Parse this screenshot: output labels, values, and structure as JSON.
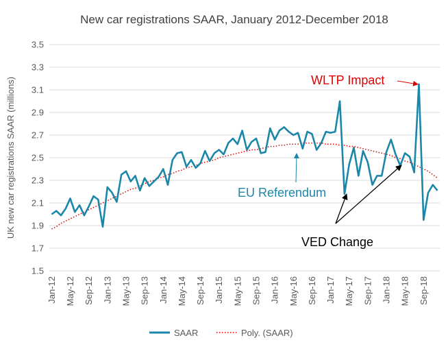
{
  "chart_data": {
    "type": "line",
    "title": "New car registrations SAAR, January 2012-December 2018",
    "ylabel": "UK new car registrations SAAR (millions)",
    "xlabel": "",
    "ylim": [
      1.5,
      3.5
    ],
    "yticks": [
      "1.5",
      "1.7",
      "1.9",
      "2.1",
      "2.3",
      "2.5",
      "2.7",
      "2.9",
      "3.1",
      "3.3",
      "3.5"
    ],
    "xtick_labels": [
      "Jan-12",
      "May-12",
      "Sep-12",
      "Jan-13",
      "May-13",
      "Sep-13",
      "Jan-14",
      "May-14",
      "Sep-14",
      "Jan-15",
      "May-15",
      "Sep-15",
      "Jan-16",
      "May-16",
      "Sep-16",
      "Jan-17",
      "May-17",
      "Sep-17",
      "Jan-18",
      "May-18",
      "Sep-18"
    ],
    "x_start": "Jan-12",
    "x_end": "Dec-18",
    "grid": "horizontal",
    "legend_position": "bottom",
    "series": [
      {
        "name": "SAAR",
        "color": "#1a86a8",
        "values": [
          2.0,
          2.03,
          1.99,
          2.05,
          2.14,
          2.02,
          2.08,
          1.99,
          2.07,
          2.16,
          2.13,
          1.89,
          2.24,
          2.19,
          2.11,
          2.35,
          2.38,
          2.29,
          2.34,
          2.21,
          2.32,
          2.25,
          2.29,
          2.33,
          2.4,
          2.26,
          2.48,
          2.54,
          2.55,
          2.42,
          2.48,
          2.41,
          2.45,
          2.56,
          2.47,
          2.54,
          2.57,
          2.53,
          2.63,
          2.67,
          2.62,
          2.74,
          2.57,
          2.64,
          2.67,
          2.54,
          2.55,
          2.76,
          2.66,
          2.74,
          2.77,
          2.73,
          2.7,
          2.72,
          2.58,
          2.73,
          2.71,
          2.57,
          2.63,
          2.73,
          2.72,
          2.73,
          3.0,
          2.18,
          2.44,
          2.59,
          2.34,
          2.56,
          2.46,
          2.26,
          2.34,
          2.34,
          2.55,
          2.66,
          2.53,
          2.43,
          2.54,
          2.51,
          2.37,
          3.15,
          1.95,
          2.19,
          2.26,
          2.21
        ]
      },
      {
        "name": "Poly. (SAAR)",
        "color": "#e00000",
        "style": "dotted",
        "values": [
          1.87,
          1.89,
          1.92,
          1.94,
          1.96,
          1.98,
          2.0,
          2.02,
          2.04,
          2.06,
          2.08,
          2.1,
          2.12,
          2.14,
          2.16,
          2.18,
          2.2,
          2.22,
          2.23,
          2.25,
          2.27,
          2.29,
          2.3,
          2.32,
          2.33,
          2.35,
          2.36,
          2.38,
          2.39,
          2.41,
          2.42,
          2.43,
          2.45,
          2.46,
          2.47,
          2.48,
          2.5,
          2.51,
          2.52,
          2.53,
          2.54,
          2.55,
          2.56,
          2.57,
          2.57,
          2.58,
          2.59,
          2.6,
          2.6,
          2.61,
          2.61,
          2.62,
          2.62,
          2.62,
          2.63,
          2.63,
          2.63,
          2.63,
          2.63,
          2.62,
          2.62,
          2.62,
          2.61,
          2.61,
          2.6,
          2.6,
          2.59,
          2.58,
          2.57,
          2.56,
          2.55,
          2.54,
          2.53,
          2.52,
          2.5,
          2.49,
          2.47,
          2.46,
          2.44,
          2.42,
          2.4,
          2.38,
          2.35,
          2.32
        ]
      }
    ],
    "annotations": [
      {
        "text": "WLTP Impact",
        "color": "#e00000",
        "points_to": {
          "x": "Aug-18",
          "y": 3.14
        }
      },
      {
        "text": "EU Referendum",
        "color": "#1a86a8",
        "points_to": {
          "x": "Jul-16",
          "y": 2.55
        }
      },
      {
        "text": "VED Change",
        "color": "#000000",
        "points_to": [
          {
            "x": "Apr-17",
            "y": 2.19
          },
          {
            "x": "Jun-18",
            "y": 2.48
          }
        ]
      }
    ]
  }
}
